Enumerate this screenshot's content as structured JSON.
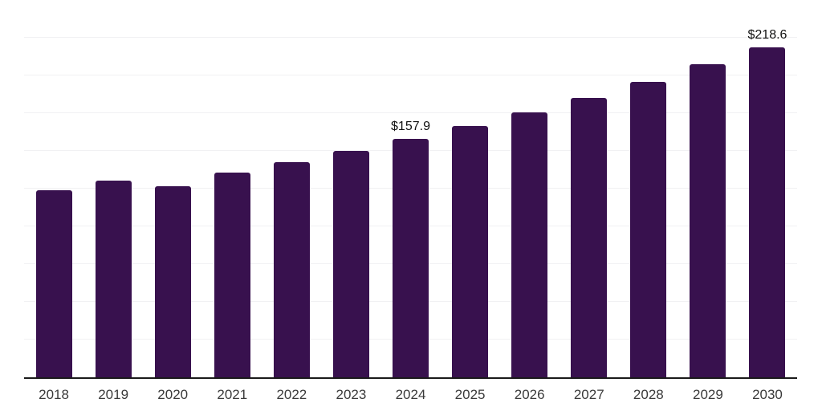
{
  "chart_data": {
    "type": "bar",
    "title": "",
    "xlabel": "",
    "ylabel": "",
    "categories": [
      "2018",
      "2019",
      "2020",
      "2021",
      "2022",
      "2023",
      "2024",
      "2025",
      "2026",
      "2027",
      "2028",
      "2029",
      "2030"
    ],
    "values": [
      123.9,
      130.5,
      126.8,
      135.6,
      142.6,
      150.1,
      157.9,
      166.6,
      175.7,
      185.3,
      196.0,
      207.2,
      218.6
    ],
    "data_labels": [
      "",
      "",
      "",
      "",
      "",
      "",
      "$157.9",
      "",
      "",
      "",
      "",
      "",
      "$218.6"
    ],
    "ylim": [
      0,
      250
    ],
    "gridline_step": 25,
    "grid": "horizontal",
    "legend": "none",
    "bar_color": "#38114E",
    "axis_line_color": "#1A1A1A",
    "gridline_color": "#F1F1F3",
    "tick_label_color": "#3A3A3A",
    "data_label_color": "#111111",
    "background_color": "#FFFFFF"
  }
}
